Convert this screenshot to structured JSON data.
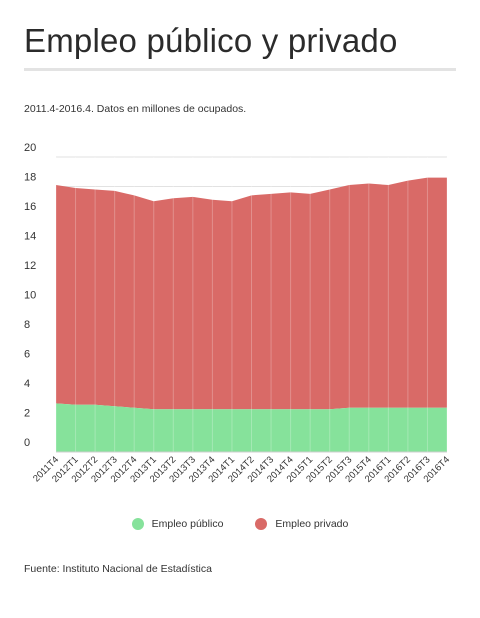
{
  "header": {
    "title": "Empleo público y privado",
    "subtitle": "2011.4-2016.4. Datos en millones de ocupados."
  },
  "footer": {
    "source": "Fuente: Instituto Nacional de Estadística"
  },
  "colors": {
    "publico": "#86e29b",
    "privado": "#d96a67",
    "grid": "#e2e2e2",
    "rule": "#e3e3e3"
  },
  "chart_data": {
    "type": "area",
    "stacked": true,
    "categories": [
      "2011T4",
      "2012T1",
      "2012T2",
      "2012T3",
      "2012T4",
      "2013T1",
      "2013T2",
      "2013T3",
      "2013T4",
      "2014T1",
      "2014T2",
      "2014T3",
      "2014T4",
      "2015T1",
      "2015T2",
      "2015T3",
      "2015T4",
      "2016T1",
      "2016T2",
      "2016T3",
      "2016T4"
    ],
    "series": [
      {
        "name": "Empleo público",
        "color": "#86e29b",
        "values": [
          3.3,
          3.2,
          3.2,
          3.1,
          3.0,
          2.9,
          2.9,
          2.9,
          2.9,
          2.9,
          2.9,
          2.9,
          2.9,
          2.9,
          2.9,
          3.0,
          3.0,
          3.0,
          3.0,
          3.0,
          3.0
        ]
      },
      {
        "name": "Empleo privado",
        "color": "#d96a67",
        "values": [
          14.8,
          14.7,
          14.6,
          14.6,
          14.4,
          14.1,
          14.3,
          14.4,
          14.2,
          14.1,
          14.5,
          14.6,
          14.7,
          14.6,
          14.9,
          15.1,
          15.2,
          15.1,
          15.4,
          15.6,
          15.6
        ]
      }
    ],
    "ylim": [
      0,
      20
    ],
    "yticks": [
      0,
      2,
      4,
      6,
      8,
      10,
      12,
      14,
      16,
      18,
      20
    ],
    "grid": true,
    "legend": "bottom-center",
    "xlabel": "",
    "ylabel": ""
  }
}
